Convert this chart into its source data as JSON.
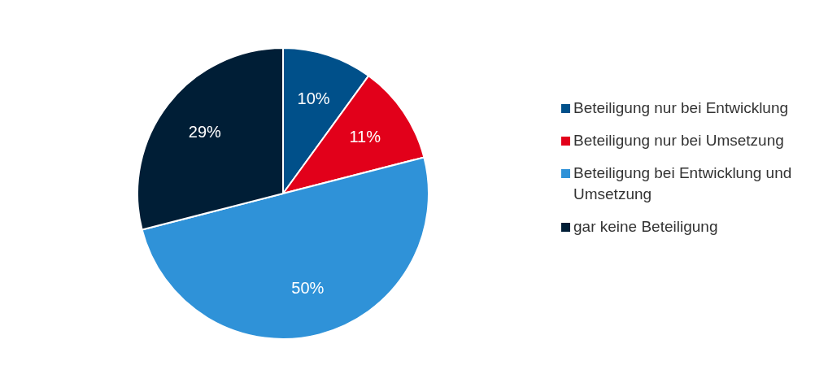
{
  "chart_data": {
    "type": "pie",
    "categories": [
      "Beteiligung nur bei Entwicklung",
      "Beteiligung nur bei Umsetzung",
      "Beteiligung bei Entwicklung und Umsetzung",
      "gar keine Beteiligung"
    ],
    "values": [
      10,
      11,
      50,
      29
    ],
    "colors": [
      "#00508a",
      "#e2001a",
      "#2f92d8",
      "#001e36"
    ],
    "value_labels": [
      "10%",
      "11%",
      "50%",
      "29%"
    ],
    "legend": "right"
  }
}
